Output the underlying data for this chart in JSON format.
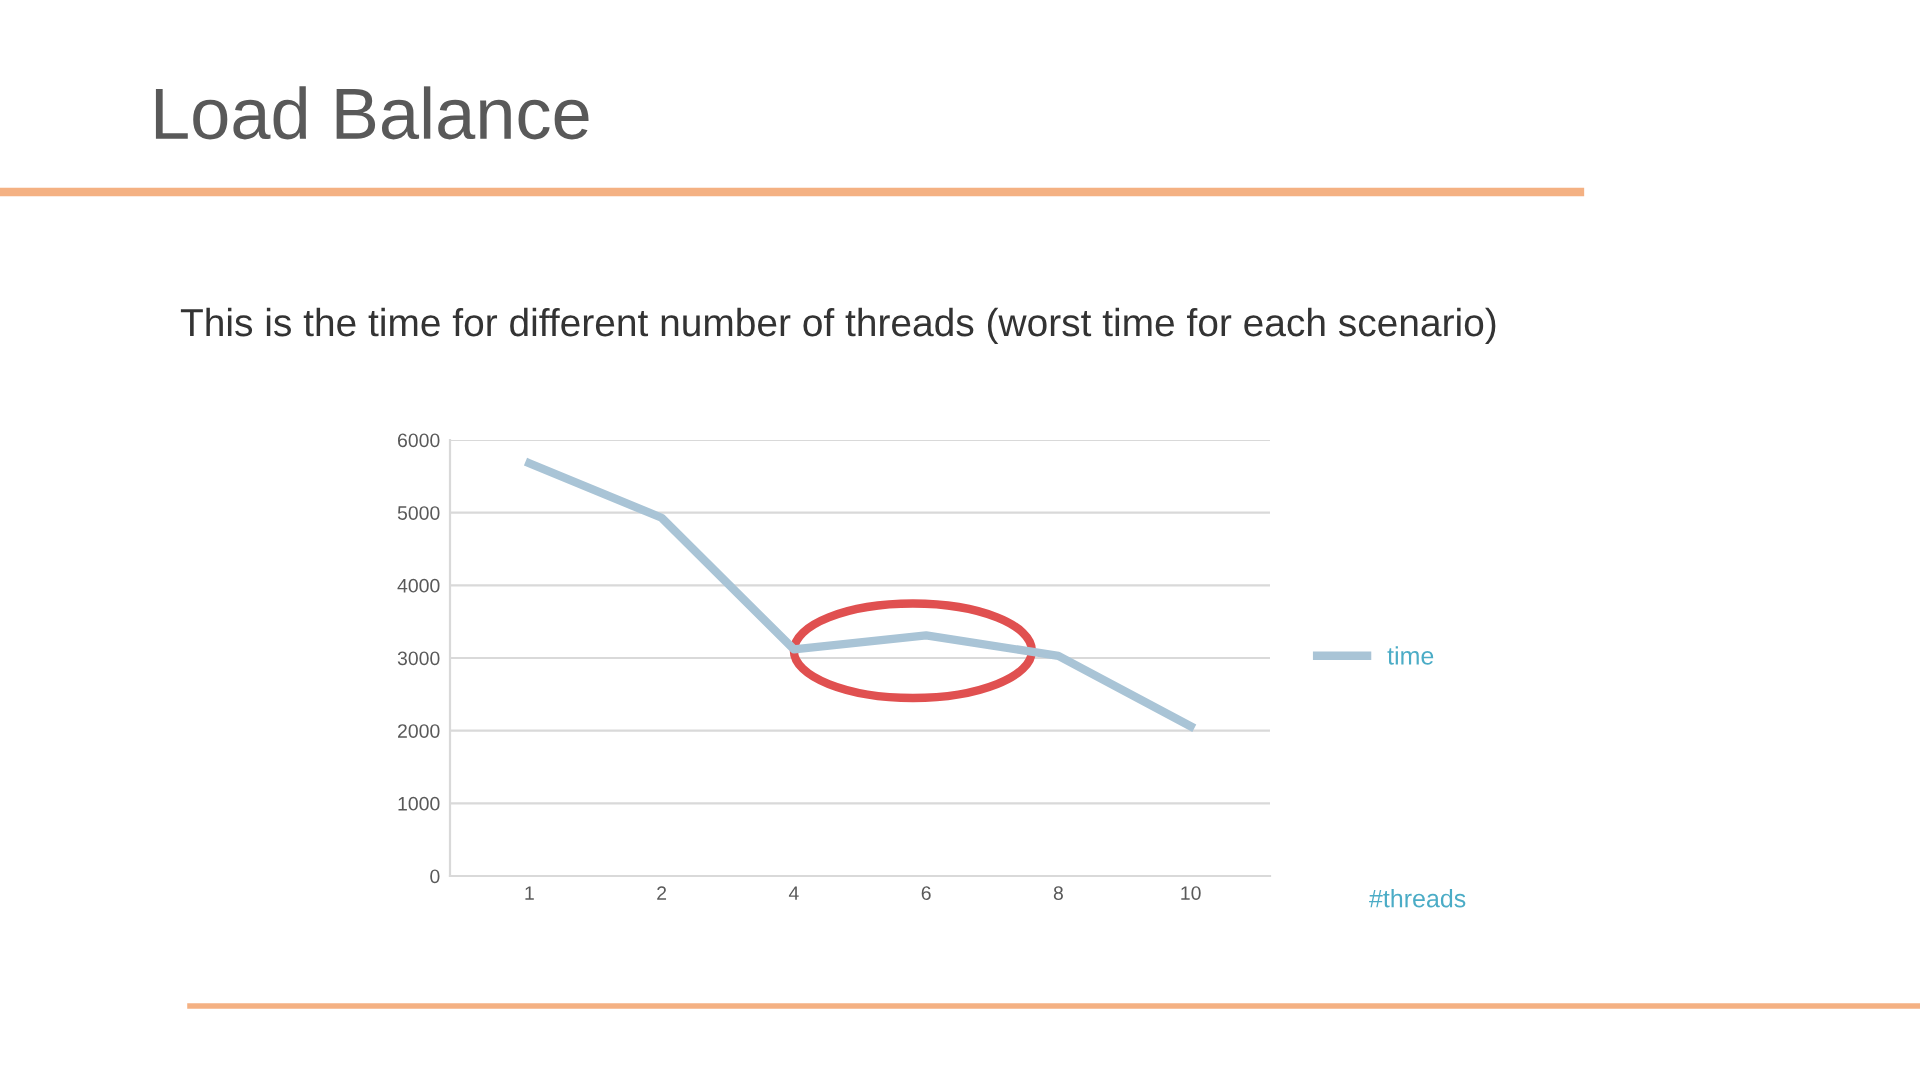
{
  "chart_data": {
    "type": "line",
    "title": "Load Balance",
    "subtitle": "This is the time for different number of threads (worst time for each scenario)",
    "xlabel": "#threads",
    "categories": [
      "1",
      "2",
      "4",
      "6",
      "8",
      "10"
    ],
    "series": [
      {
        "name": "time",
        "color": "#a9c4d6",
        "values": [
          5680,
          4930,
          3120,
          3310,
          3030,
          2060
        ]
      }
    ],
    "ylim": [
      0,
      6000
    ],
    "yticks": [
      0,
      1000,
      2000,
      3000,
      4000,
      5000,
      6000
    ],
    "grid": "y",
    "legend": "right",
    "marker": "none",
    "line_style": "solid"
  }
}
